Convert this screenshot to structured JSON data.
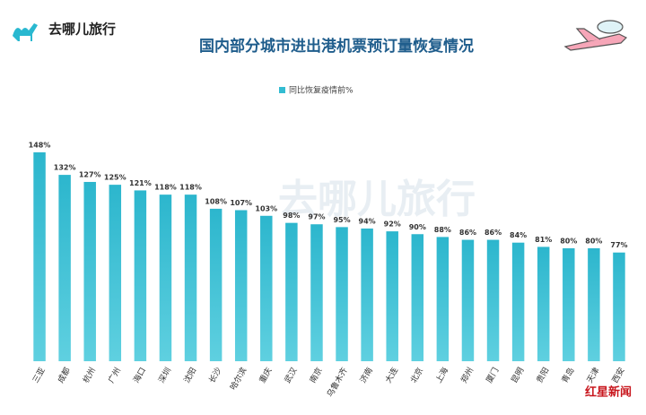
{
  "chart_data": {
    "type": "bar",
    "brand": "去哪儿旅行",
    "title": "国内部分城市进出港机票预订量恢复情况",
    "legend": "同比恢复疫情前%",
    "source_logo": "红星新闻",
    "series": [
      {
        "name": "同比恢复疫情前%",
        "color": "#33bcd2",
        "values": [
          148,
          132,
          127,
          125,
          121,
          118,
          118,
          108,
          107,
          103,
          98,
          97,
          95,
          94,
          92,
          90,
          88,
          86,
          86,
          84,
          81,
          80,
          80,
          77
        ],
        "value_labels": [
          "148%",
          "132%",
          "127%",
          "125%",
          "121%",
          "118%",
          "118%",
          "108%",
          "107%",
          "103%",
          "98%",
          "97%",
          "95%",
          "94%",
          "92%",
          "90%",
          "88%",
          "86%",
          "86%",
          "84%",
          "81%",
          "80%",
          "80%",
          "77%"
        ]
      }
    ],
    "categories": [
      "三亚",
      "成都",
      "杭州",
      "广州",
      "海口",
      "深圳",
      "沈阳",
      "长沙",
      "哈尔滨",
      "重庆",
      "武汉",
      "南京",
      "乌鲁木齐",
      "济南",
      "大连",
      "北京",
      "上海",
      "郑州",
      "厦门",
      "昆明",
      "贵阳",
      "青岛",
      "天津",
      "西安"
    ]
  }
}
